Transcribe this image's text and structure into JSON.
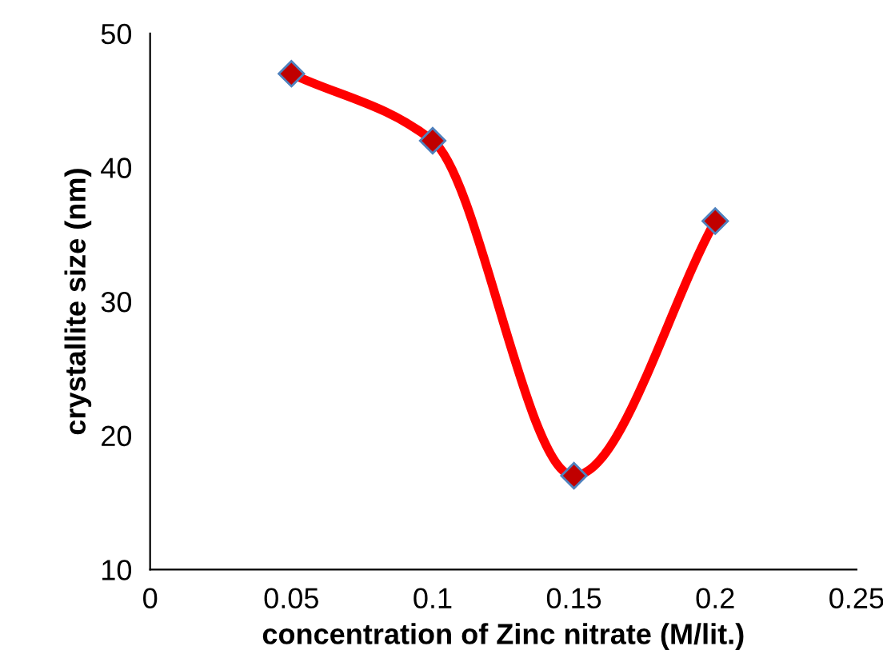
{
  "chart_data": {
    "type": "line",
    "xlabel": "concentration of Zinc nitrate (M/lit.)",
    "ylabel": "crystallite size (nm)",
    "x": [
      0.05,
      0.1,
      0.15,
      0.2
    ],
    "series": [
      {
        "color": "#ff0000",
        "values": [
          47,
          42,
          17,
          36
        ]
      }
    ],
    "xlim": [
      0,
      0.25
    ],
    "xticks": [
      0,
      0.05,
      0.1,
      0.15,
      0.2,
      0.25
    ],
    "ylim": [
      10,
      50
    ],
    "yticks": [
      10,
      20,
      30,
      40,
      50
    ],
    "grid": false,
    "legend": false,
    "marker": "diamond",
    "line_style": "solid"
  }
}
